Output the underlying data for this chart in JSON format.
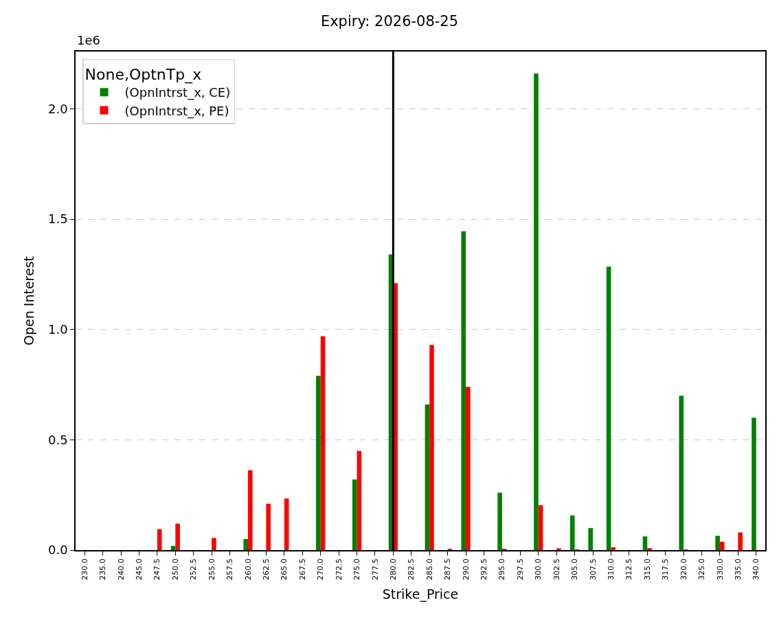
{
  "chart_data": {
    "type": "bar",
    "title": "Expiry: 2026-08-25",
    "xlabel": "Strike_Price",
    "ylabel": "Open Interest",
    "legend_title": "None,OptnTp_x",
    "categories": [
      "230.0",
      "235.0",
      "240.0",
      "245.0",
      "247.5",
      "250.0",
      "252.5",
      "255.0",
      "257.5",
      "260.0",
      "262.5",
      "265.0",
      "267.5",
      "270.0",
      "272.5",
      "275.0",
      "277.5",
      "280.0",
      "282.5",
      "285.0",
      "287.5",
      "290.0",
      "292.5",
      "295.0",
      "297.5",
      "300.0",
      "302.5",
      "305.0",
      "307.5",
      "310.0",
      "312.5",
      "315.0",
      "317.5",
      "320.0",
      "325.0",
      "330.0",
      "335.0",
      "340.0"
    ],
    "series": [
      {
        "name": "(OpnIntrst_x, CE)",
        "color": "#008000",
        "values": [
          0,
          0,
          0,
          0,
          0,
          0.019,
          0,
          0,
          0,
          0.05,
          0,
          0,
          0,
          0.79,
          0,
          0.32,
          0,
          1.34,
          0,
          0.66,
          0,
          1.445,
          0,
          0.26,
          0,
          2.16,
          0,
          0.157,
          0.1,
          1.285,
          0,
          0.062,
          0,
          0.7,
          0,
          0.065,
          0,
          0.6
        ]
      },
      {
        "name": "(OpnIntrst_x, PE)",
        "color": "#ff0000",
        "values": [
          0,
          0,
          0,
          0,
          0.095,
          0.12,
          0,
          0.055,
          0,
          0.362,
          0.21,
          0.234,
          0,
          0.97,
          0,
          0.45,
          0,
          1.21,
          0,
          0.93,
          0.005,
          0.74,
          0,
          0.005,
          0,
          0.204,
          0.008,
          0.003,
          0,
          0.013,
          0,
          0.009,
          0,
          0.003,
          0,
          0.038,
          0.08,
          0
        ]
      }
    ],
    "ylim": [
      0,
      2.26
    ],
    "yticks": [
      {
        "value": 0,
        "label": "0.0"
      },
      {
        "value": 0.5,
        "label": "0.5"
      },
      {
        "value": 1,
        "label": "1.0"
      },
      {
        "value": 1.5,
        "label": "1.5"
      },
      {
        "value": 2,
        "label": "2.0"
      }
    ],
    "grid": "y",
    "legend": "top left",
    "ref_lines": [
      {
        "axis": "x",
        "value": "280.0",
        "color": "#000000"
      }
    ],
    "annotations": [
      "1e6"
    ]
  }
}
